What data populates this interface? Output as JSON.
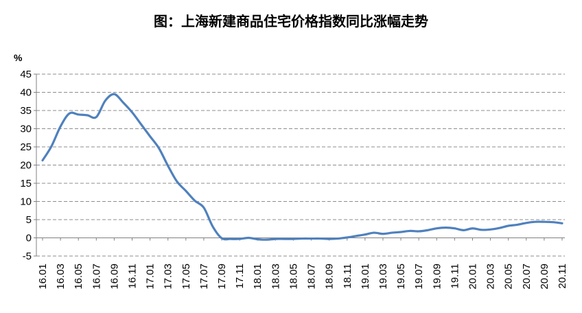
{
  "chart_data": {
    "type": "line",
    "title": "图：上海新建商品住宅价格指数同比涨幅走势",
    "ylabel": "%",
    "xlabel": "",
    "ylim": [
      -5,
      45
    ],
    "yticks": [
      -5,
      0,
      5,
      10,
      15,
      20,
      25,
      30,
      35,
      40,
      45
    ],
    "grid": true,
    "legend": "none",
    "line_color": "#4F81BD",
    "x_tick_labels": [
      "16.01",
      "16.03",
      "16.05",
      "16.07",
      "16.09",
      "16.11",
      "17.01",
      "17.03",
      "17.05",
      "17.07",
      "17.09",
      "17.11",
      "18.01",
      "18.03",
      "18.05",
      "18.07",
      "18.09",
      "18.11",
      "19.01",
      "19.03",
      "19.05",
      "19.07",
      "19.09",
      "19.11",
      "20.01",
      "20.03",
      "20.05",
      "20.07",
      "20.09",
      "20.11"
    ],
    "x": [
      "16.01",
      "16.02",
      "16.03",
      "16.04",
      "16.05",
      "16.06",
      "16.07",
      "16.08",
      "16.09",
      "16.10",
      "16.11",
      "16.12",
      "17.01",
      "17.02",
      "17.03",
      "17.04",
      "17.05",
      "17.06",
      "17.07",
      "17.08",
      "17.09",
      "17.10",
      "17.11",
      "17.12",
      "18.01",
      "18.02",
      "18.03",
      "18.04",
      "18.05",
      "18.06",
      "18.07",
      "18.08",
      "18.09",
      "18.10",
      "18.11",
      "18.12",
      "19.01",
      "19.02",
      "19.03",
      "19.04",
      "19.05",
      "19.06",
      "19.07",
      "19.08",
      "19.09",
      "19.10",
      "19.11",
      "19.12",
      "20.01",
      "20.02",
      "20.03",
      "20.04",
      "20.05",
      "20.06",
      "20.07",
      "20.08",
      "20.09",
      "20.10",
      "20.11"
    ],
    "values": [
      21.3,
      25.2,
      30.6,
      34.2,
      33.9,
      33.7,
      33.2,
      37.7,
      39.5,
      37.2,
      34.5,
      31.2,
      27.9,
      24.6,
      19.8,
      15.5,
      12.9,
      10.2,
      8.3,
      3.1,
      -0.1,
      -0.3,
      -0.3,
      0.0,
      -0.4,
      -0.5,
      -0.3,
      -0.3,
      -0.3,
      -0.2,
      -0.2,
      -0.2,
      -0.3,
      -0.2,
      0.1,
      0.5,
      0.9,
      1.4,
      1.1,
      1.4,
      1.6,
      1.9,
      1.8,
      2.1,
      2.6,
      2.8,
      2.6,
      2.1,
      2.6,
      2.2,
      2.3,
      2.7,
      3.3,
      3.6,
      4.1,
      4.4,
      4.4,
      4.3,
      4.0
    ]
  }
}
